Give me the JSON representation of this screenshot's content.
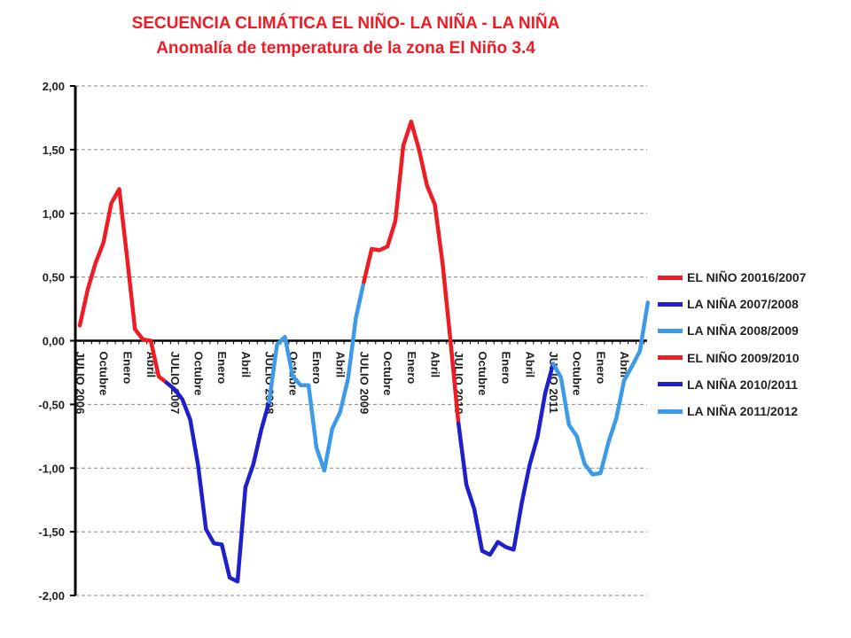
{
  "chart_data": {
    "type": "line",
    "title": "SECUENCIA CLIMÁTICA EL NIÑO- LA NIÑA - LA NIÑA",
    "subtitle": "Anomalía de temperatura de la zona El Niño 3.4",
    "xlabel": "",
    "ylabel": "",
    "ylim": [
      -2.0,
      2.0
    ],
    "yticks": [
      "2,00",
      "1,50",
      "1,00",
      "0,50",
      "0,00",
      "-0,50",
      "-1,00",
      "-1,50",
      "-2,00"
    ],
    "ytick_values": [
      2.0,
      1.5,
      1.0,
      0.5,
      0.0,
      -0.5,
      -1.0,
      -1.5,
      -2.0
    ],
    "grid": "horizontal dashed",
    "legend_position": "right",
    "x_ticks": [
      {
        "i": 0,
        "label": "JULIO 2006"
      },
      {
        "i": 3,
        "label": "Octubre"
      },
      {
        "i": 6,
        "label": "Enero"
      },
      {
        "i": 9,
        "label": "Abril"
      },
      {
        "i": 12,
        "label": "JULIO 2007"
      },
      {
        "i": 15,
        "label": "Octubre"
      },
      {
        "i": 18,
        "label": "Enero"
      },
      {
        "i": 21,
        "label": "Abril"
      },
      {
        "i": 24,
        "label": "JULIO 2008"
      },
      {
        "i": 27,
        "label": "Octubre"
      },
      {
        "i": 30,
        "label": "Enero"
      },
      {
        "i": 33,
        "label": "Abril"
      },
      {
        "i": 36,
        "label": "JULIO 2009"
      },
      {
        "i": 39,
        "label": "Octubre"
      },
      {
        "i": 42,
        "label": "Enero"
      },
      {
        "i": 45,
        "label": "Abril"
      },
      {
        "i": 48,
        "label": "JULIO 2010"
      },
      {
        "i": 51,
        "label": "Octubre"
      },
      {
        "i": 54,
        "label": "Enero"
      },
      {
        "i": 57,
        "label": "Abril"
      },
      {
        "i": 60,
        "label": "JULIO 2011"
      },
      {
        "i": 63,
        "label": "Octubre"
      },
      {
        "i": 66,
        "label": "Enero"
      },
      {
        "i": 69,
        "label": "Abril"
      }
    ],
    "series": [
      {
        "name": "EL NIÑO 20016/2007",
        "color": "#ee1c25",
        "start": 0,
        "values": [
          0.12,
          0.4,
          0.61,
          0.77,
          1.08,
          1.19,
          0.65,
          0.09,
          0.01,
          0.0,
          -0.28,
          -0.33
        ]
      },
      {
        "name": "LA NIÑA 2007/2008",
        "color": "#1f1fcc",
        "start": 11,
        "values": [
          -0.33,
          -0.38,
          -0.46,
          -0.62,
          -0.98,
          -1.48,
          -1.59,
          -1.6,
          -1.86,
          -1.89,
          -1.15,
          -0.97,
          -0.7,
          -0.48
        ]
      },
      {
        "name": "LA NIÑA 2008/2009",
        "color": "#3c9ae8",
        "start": 24,
        "values": [
          -0.48,
          -0.03,
          0.03,
          -0.28,
          -0.35,
          -0.35,
          -0.84,
          -1.02,
          -0.69,
          -0.56,
          -0.3,
          0.18,
          0.46
        ]
      },
      {
        "name": "EL NIÑO 2009/2010",
        "color": "#ee1c25",
        "start": 36,
        "values": [
          0.46,
          0.72,
          0.71,
          0.74,
          0.94,
          1.53,
          1.72,
          1.5,
          1.22,
          1.07,
          0.6,
          -0.01,
          -0.65
        ]
      },
      {
        "name": "LA NIÑA 2010/2011",
        "color": "#1f1fcc",
        "start": 48,
        "values": [
          -0.65,
          -1.13,
          -1.32,
          -1.65,
          -1.68,
          -1.58,
          -1.62,
          -1.64,
          -1.28,
          -0.98,
          -0.76,
          -0.41,
          -0.18
        ]
      },
      {
        "name": "LA NIÑA 2011/2012",
        "color": "#3c9ae8",
        "start": 60,
        "values": [
          -0.18,
          -0.29,
          -0.66,
          -0.75,
          -0.97,
          -1.05,
          -1.04,
          -0.8,
          -0.61,
          -0.31,
          -0.2,
          -0.08,
          0.3
        ]
      }
    ]
  }
}
